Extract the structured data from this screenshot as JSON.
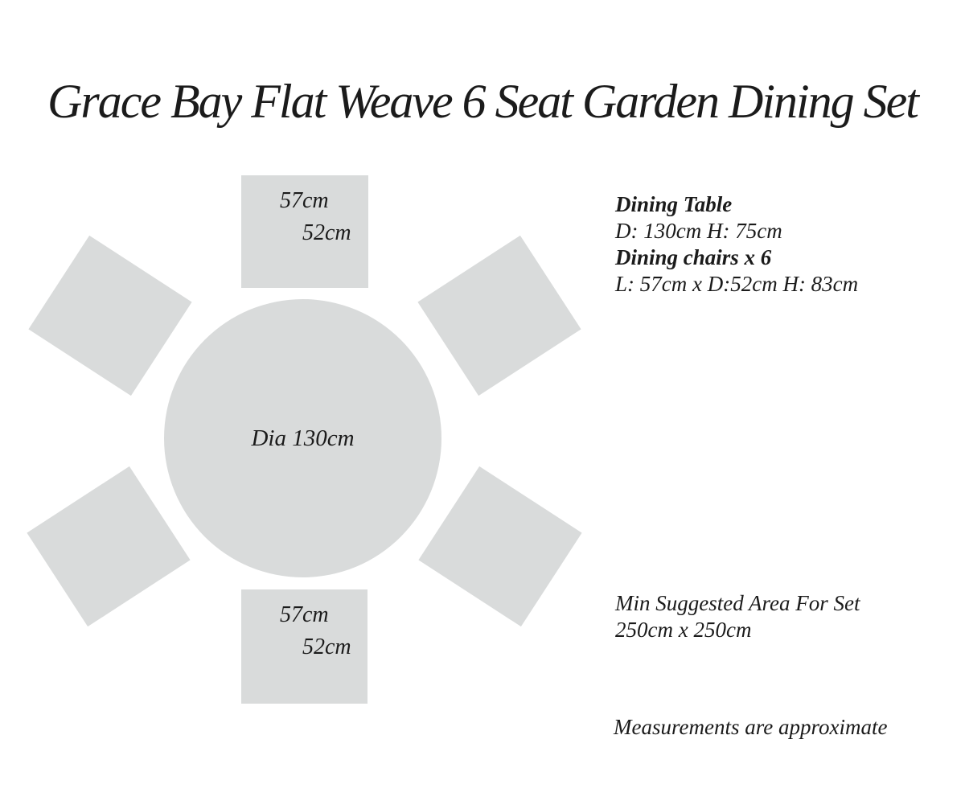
{
  "title": "Grace Bay Flat Weave 6 Seat Garden Dining Set",
  "diagram": {
    "table_label": "Dia 130cm",
    "top_chair": {
      "length_label": "57cm",
      "depth_label": "52cm"
    },
    "bottom_chair": {
      "length_label": "57cm",
      "depth_label": "52cm"
    }
  },
  "specs": {
    "table_heading": "Dining Table",
    "table_dimensions": "D: 130cm H: 75cm",
    "chairs_heading": "Dining chairs x 6",
    "chairs_dimensions": "L: 57cm x D:52cm H: 83cm"
  },
  "suggested_area": {
    "heading": "Min Suggested Area For Set",
    "dimensions": "250cm x 250cm"
  },
  "footnote": "Measurements are approximate",
  "colors": {
    "background": "#ffffff",
    "shape_fill": "#d9dbdb",
    "text": "#1b1b1b"
  }
}
